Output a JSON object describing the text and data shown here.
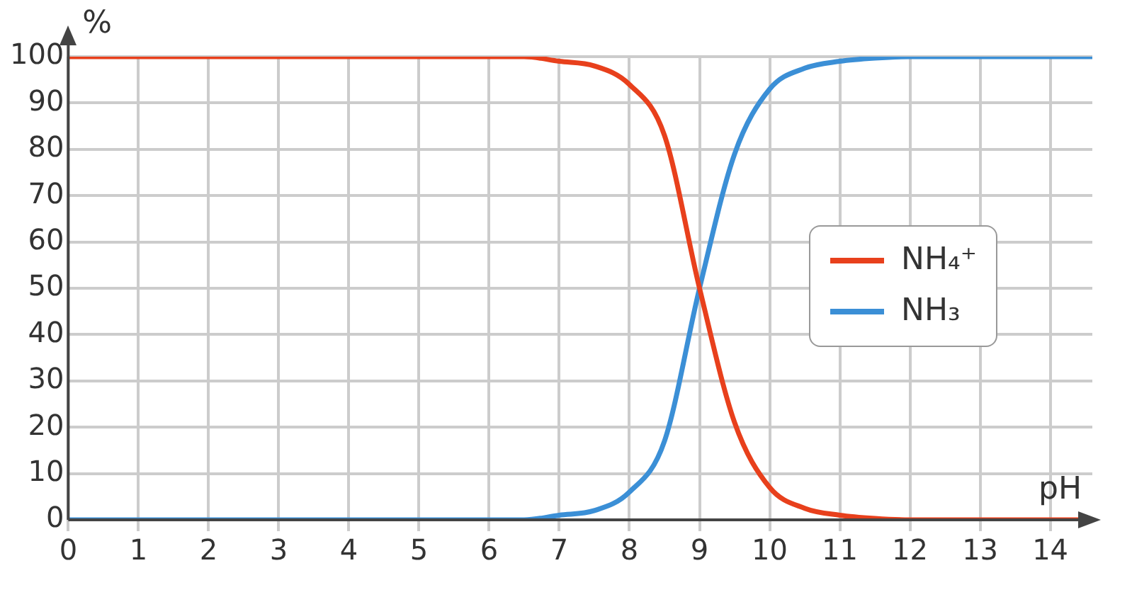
{
  "chart_data": {
    "type": "line",
    "xlabel": "pH",
    "ylabel": "%",
    "x": [
      0,
      6.5,
      7,
      7.5,
      8,
      8.5,
      9,
      9.5,
      10,
      10.5,
      11,
      11.5,
      12,
      14.6
    ],
    "series": [
      {
        "name": "NH₄⁺",
        "color": "#e8401c",
        "values": [
          100,
          100,
          99,
          98,
          94,
          83,
          50,
          21,
          7,
          2.5,
          1,
          0.3,
          0,
          0
        ]
      },
      {
        "name": "NH₃",
        "color": "#3b8fd6",
        "values": [
          0,
          0,
          1,
          2,
          6,
          17,
          50,
          79,
          93,
          97.5,
          99,
          99.7,
          100,
          100
        ]
      }
    ],
    "xlim": [
      0,
      14.6
    ],
    "xticks": [
      0,
      1,
      2,
      3,
      4,
      5,
      6,
      7,
      8,
      9,
      10,
      11,
      12,
      13,
      14
    ],
    "ylim": [
      0,
      100
    ],
    "yticks": [
      0,
      10,
      20,
      30,
      40,
      50,
      60,
      70,
      80,
      90,
      100
    ],
    "grid": true,
    "legend": "right",
    "marker": "none",
    "line_style": "solid"
  }
}
